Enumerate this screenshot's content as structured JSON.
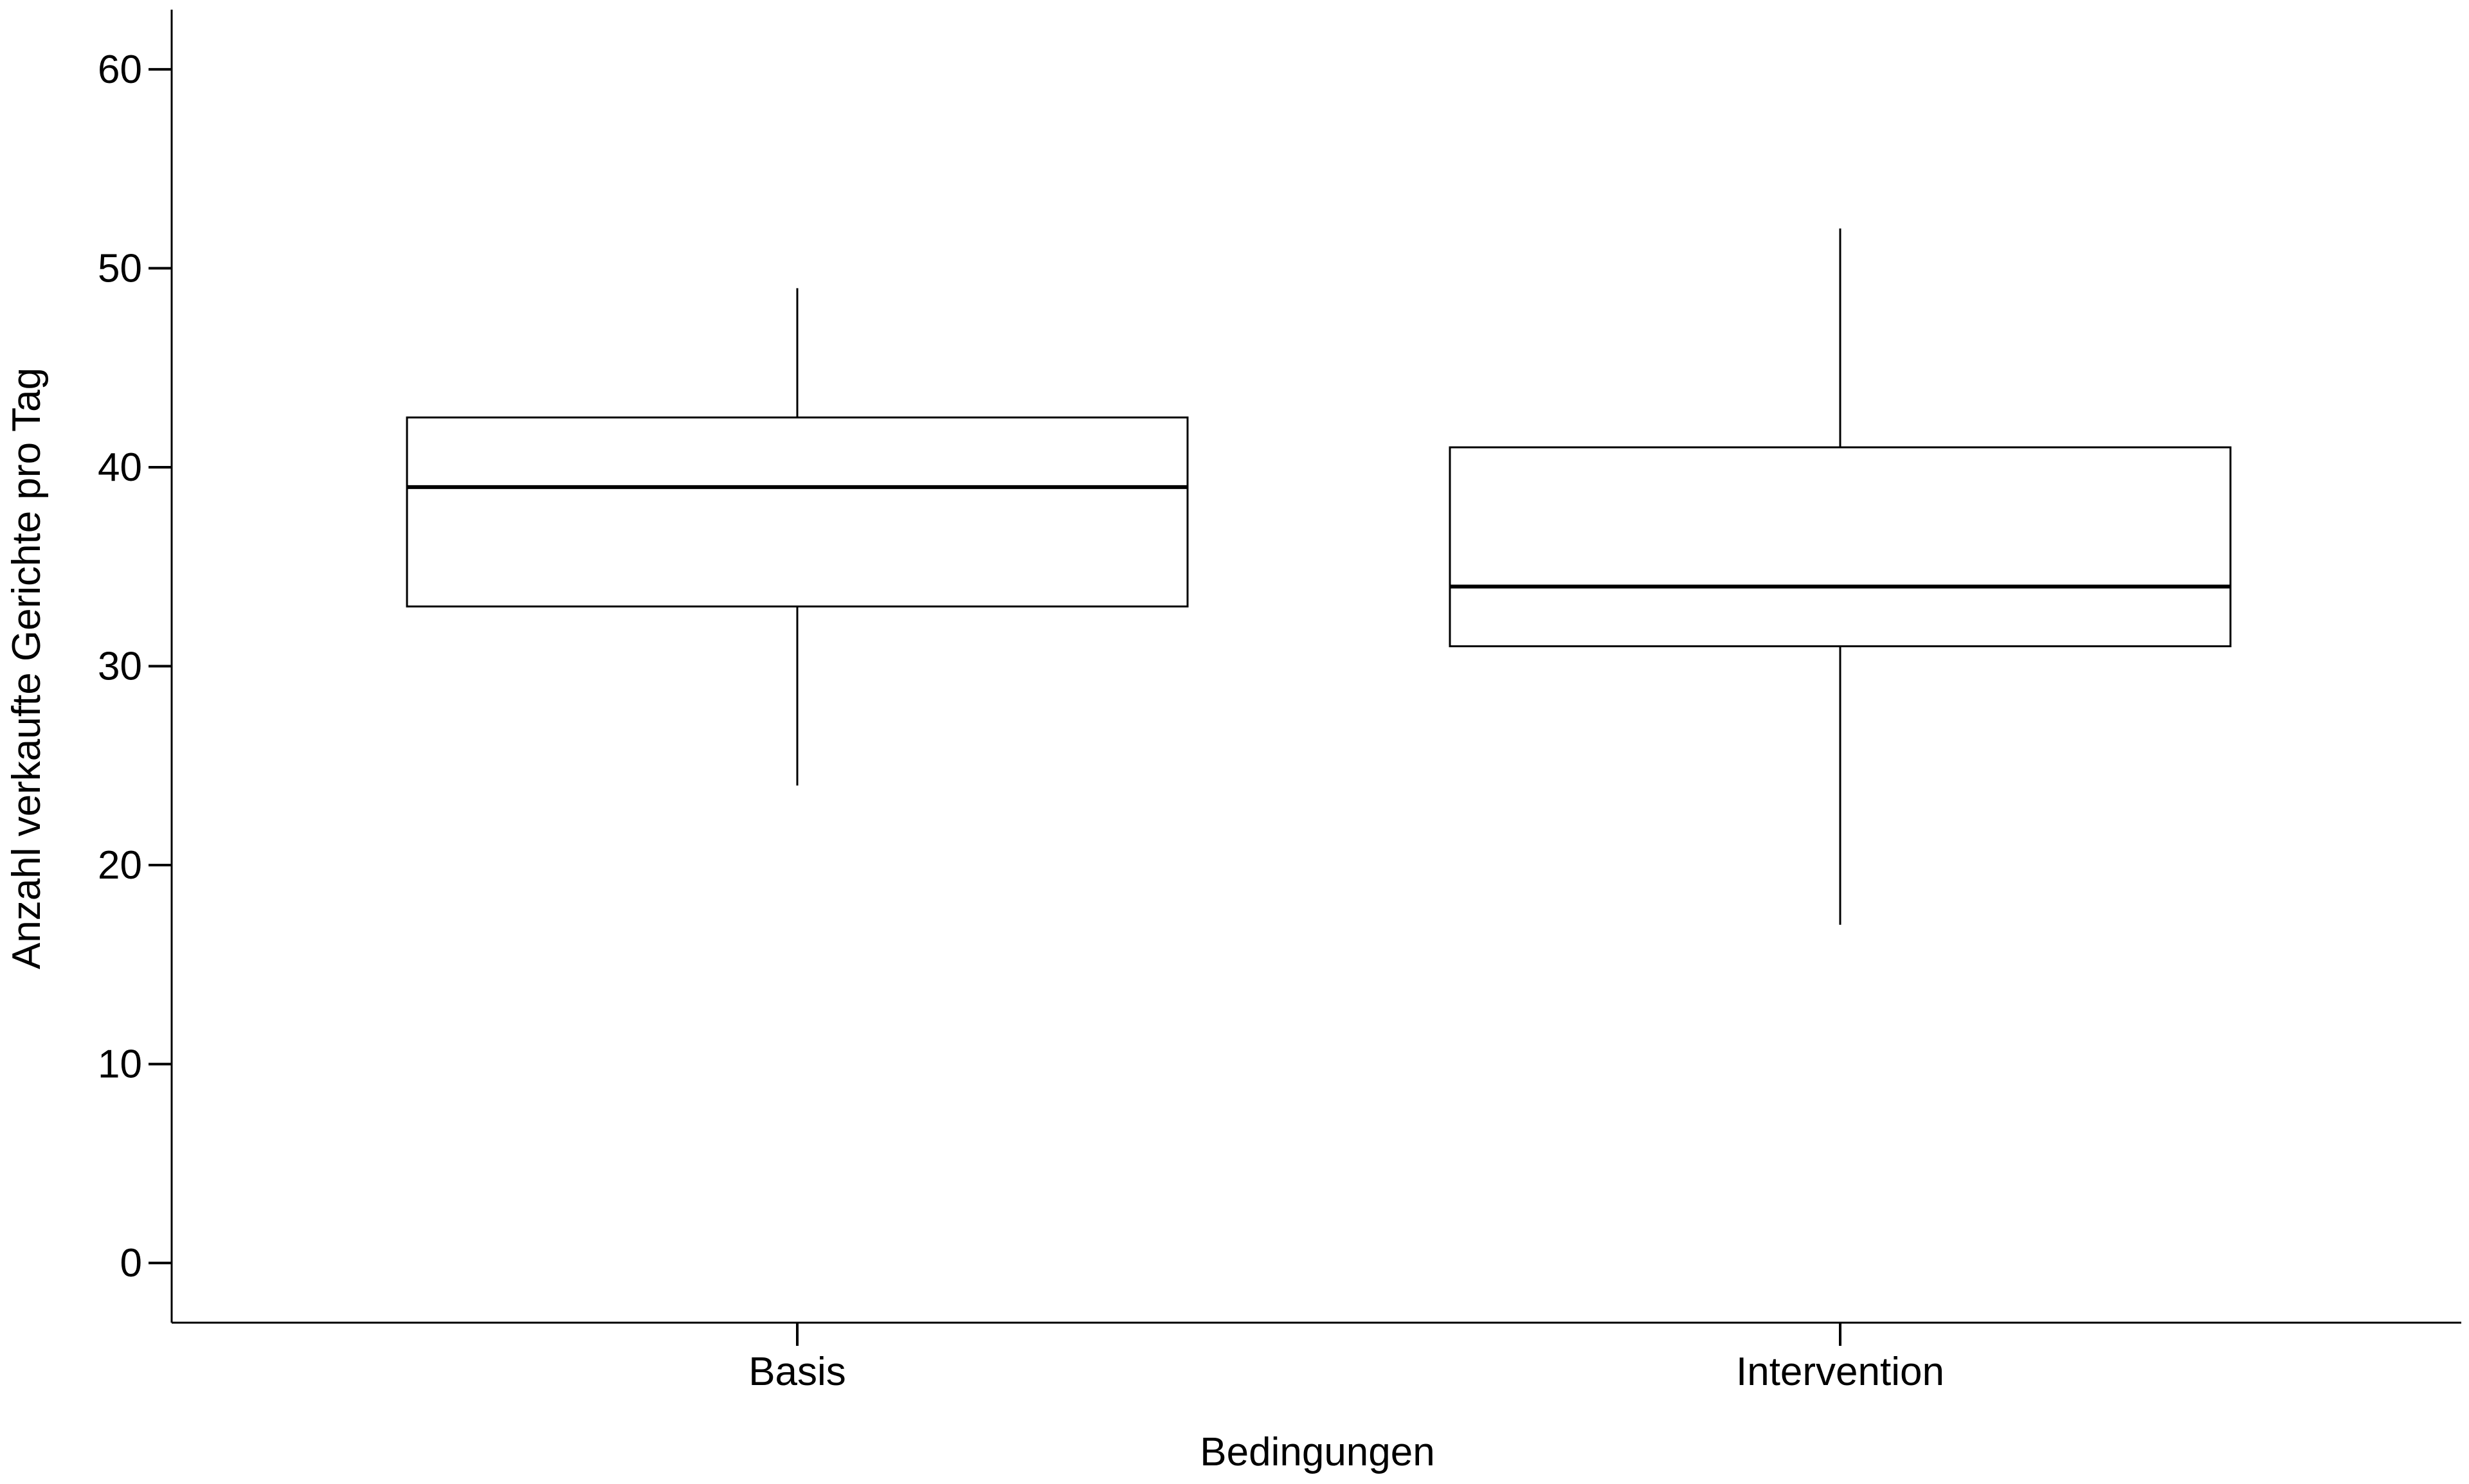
{
  "chart_data": {
    "type": "box",
    "xlabel": "Bedingungen",
    "ylabel": "Anzahl verkaufte Gerichte pro Tag",
    "ylim": [
      -3,
      63
    ],
    "yticks": [
      0,
      10,
      20,
      30,
      40,
      50,
      60
    ],
    "categories": [
      "Basis",
      "Intervention"
    ],
    "boxes": [
      {
        "category": "Basis",
        "whisker_low": 24,
        "q1": 33,
        "median": 39,
        "q3": 42.5,
        "whisker_high": 49
      },
      {
        "category": "Intervention",
        "whisker_low": 17,
        "q1": 31,
        "median": 34,
        "q3": 41,
        "whisker_high": 52
      }
    ],
    "grid": false,
    "legend": "none",
    "colors": {
      "box_fill": "#ffffff",
      "stroke": "#000000"
    }
  }
}
